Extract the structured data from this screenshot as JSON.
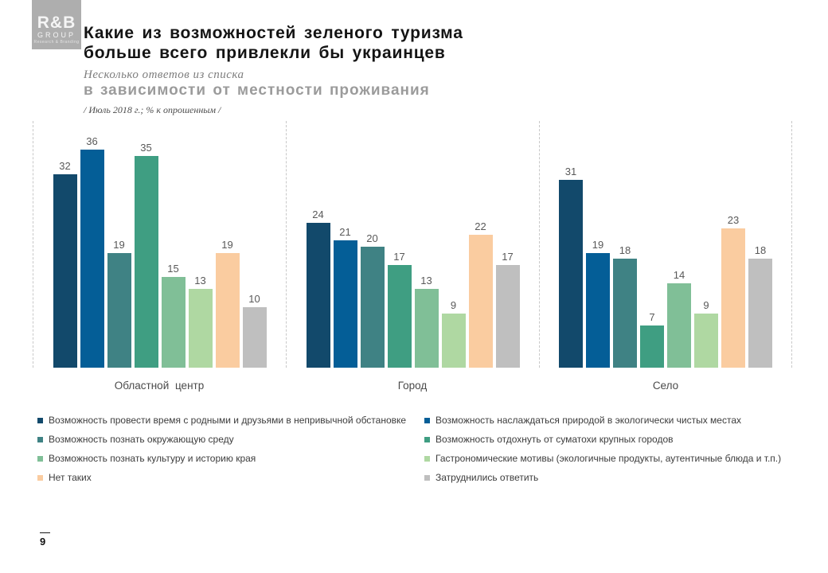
{
  "logo": {
    "line1": "R&B",
    "line2": "GROUP",
    "line3": "Research & Branding"
  },
  "header": {
    "title_line1": "Какие из возможностей зеленого туризма",
    "title_line2": "больше всего привлекли бы украинцев",
    "subtitle_italic": "Несколько ответов из списка",
    "subtitle_bold": "в зависимости от местности проживания",
    "note": "/ Июль 2018 г.; % к опрошенным /"
  },
  "chart_data": {
    "type": "bar",
    "title": "Какие из возможностей зеленого туризма больше всего привлекли бы украинцев",
    "subtitle": "в зависимости от местности проживания",
    "unit": "% к опрошенным",
    "groups": [
      "Областной центр",
      "Город",
      "Село"
    ],
    "ylim": [
      0,
      40
    ],
    "grid": false,
    "legend_position": "bottom",
    "series": [
      {
        "name": "Возможность провести время с родными и друзьями в непривычной обстановке",
        "color": "#12496b",
        "values": [
          32,
          24,
          31
        ]
      },
      {
        "name": "Возможность наслаждаться природой в экологически чистых местах",
        "color": "#045e97",
        "values": [
          36,
          21,
          19
        ]
      },
      {
        "name": "Возможность познать окружающую среду",
        "color": "#3f8284",
        "values": [
          19,
          20,
          18
        ]
      },
      {
        "name": "Возможность отдохнуть от суматохи крупных городов",
        "color": "#3f9e82",
        "values": [
          35,
          17,
          7
        ]
      },
      {
        "name": "Возможность познать культуру и историю края",
        "color": "#80bf97",
        "values": [
          15,
          13,
          14
        ]
      },
      {
        "name": "Гастрономические мотивы (экологичные продукты, аутентичные блюда и т.п.)",
        "color": "#afd8a2",
        "values": [
          13,
          9,
          9
        ]
      },
      {
        "name": "Нет таких",
        "color": "#facca0",
        "values": [
          19,
          22,
          23
        ]
      },
      {
        "name": "Затруднились ответить",
        "color": "#bfbfbf",
        "values": [
          10,
          17,
          18
        ]
      }
    ],
    "legend_columns": [
      [
        0,
        2,
        4,
        6
      ],
      [
        1,
        3,
        5,
        7
      ]
    ]
  },
  "footer": {
    "page": "9"
  }
}
